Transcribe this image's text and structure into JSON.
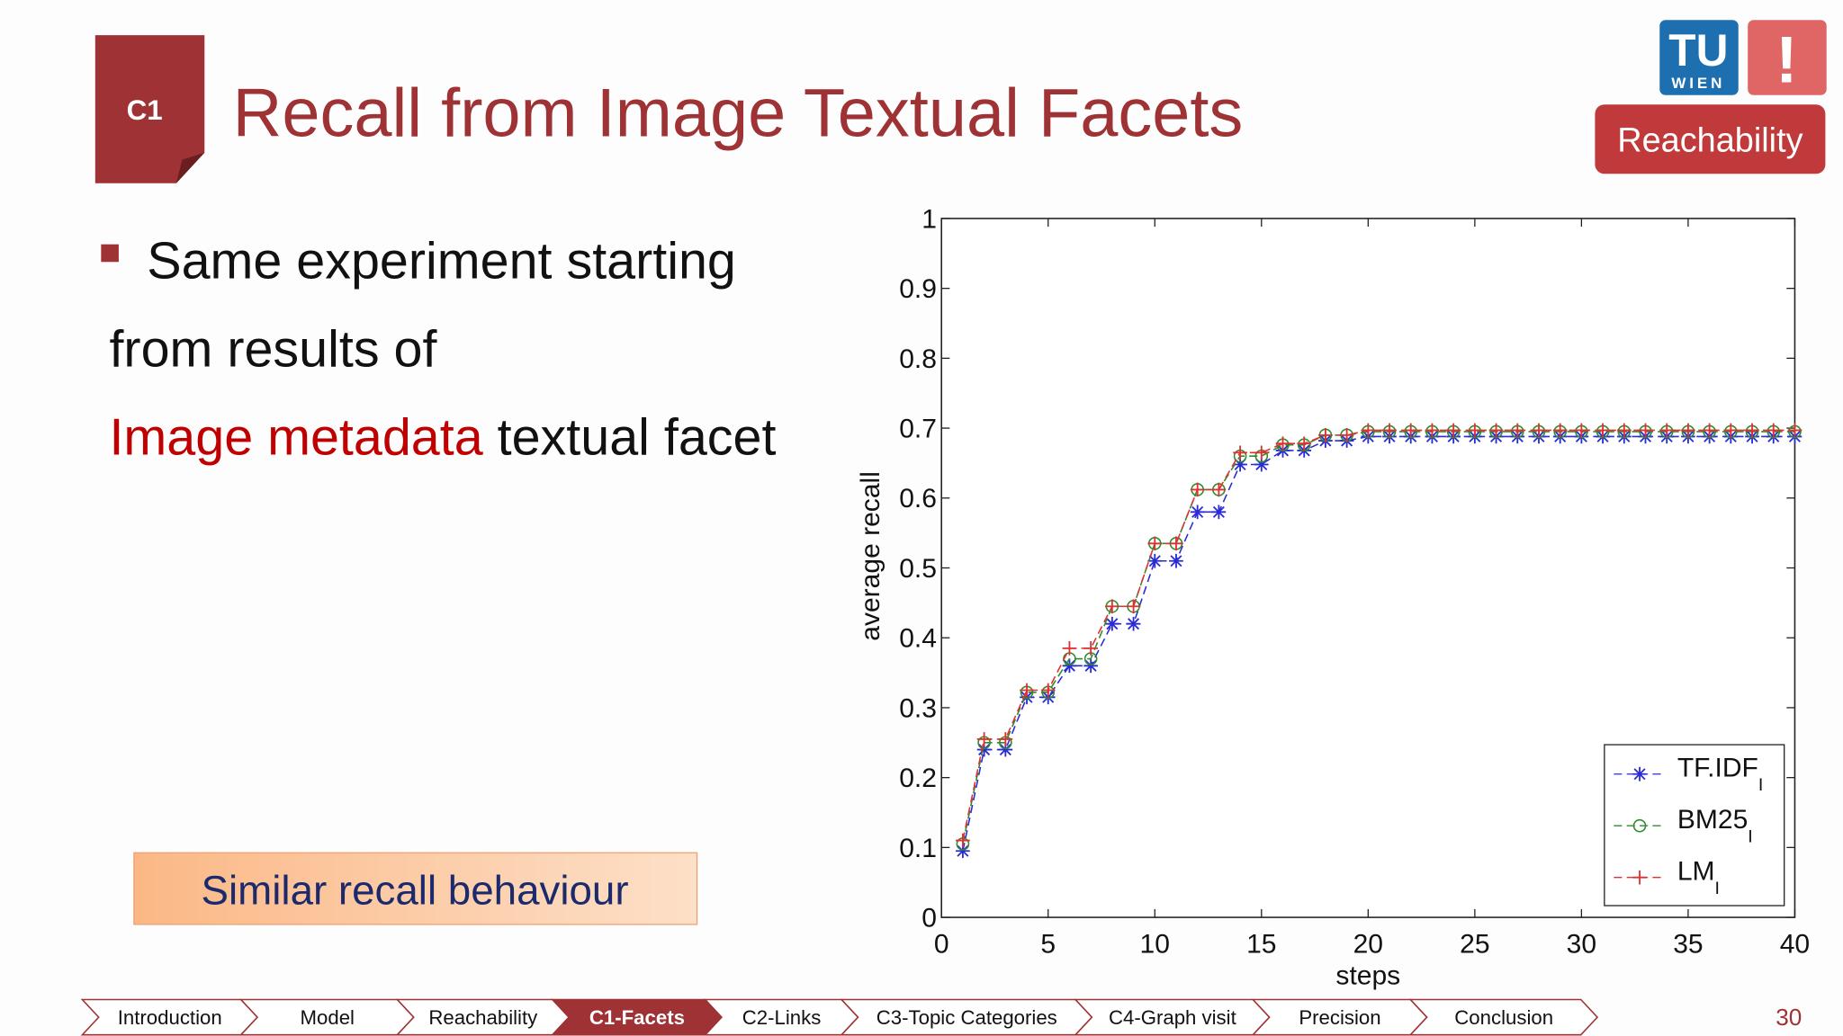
{
  "header": {
    "badge": "C1",
    "title": "Recall from Image Textual Facets",
    "logo_top": "TU",
    "logo_bottom": "WIEN",
    "logo_mark": "!",
    "section_button": "Reachability"
  },
  "bullet": {
    "line1": "Same experiment starting",
    "line2": "from results of",
    "highlight": "Image metadata",
    "rest": "textual facet"
  },
  "callout": "Similar recall behaviour",
  "nav": {
    "items": [
      "Introduction",
      "Model",
      "Reachability",
      "C1-Facets",
      "C2-Links",
      "C3-Topic Categories",
      "C4-Graph visit",
      "Precision",
      "Conclusion"
    ],
    "active": 3
  },
  "page_number": 30,
  "chart_data": {
    "type": "line",
    "x_label": "steps",
    "y_label": "average recall",
    "x": [
      1,
      2,
      3,
      4,
      5,
      6,
      7,
      8,
      9,
      10,
      11,
      12,
      13,
      14,
      15,
      16,
      17,
      18,
      19,
      20,
      21,
      22,
      23,
      24,
      25,
      26,
      27,
      28,
      29,
      30,
      31,
      32,
      33,
      34,
      35,
      36,
      37,
      38,
      39,
      40
    ],
    "series": [
      {
        "name": "TF.IDF",
        "subscript": "I",
        "color": "#2b2bd6",
        "marker": "star",
        "values": [
          0.095,
          0.24,
          0.24,
          0.315,
          0.315,
          0.36,
          0.36,
          0.42,
          0.42,
          0.51,
          0.51,
          0.58,
          0.58,
          0.648,
          0.648,
          0.668,
          0.668,
          0.682,
          0.682,
          0.688,
          0.688,
          0.688,
          0.688,
          0.688,
          0.688,
          0.688,
          0.688,
          0.688,
          0.688,
          0.688,
          0.688,
          0.688,
          0.688,
          0.688,
          0.688,
          0.688,
          0.688,
          0.688,
          0.688,
          0.688
        ]
      },
      {
        "name": "BM25",
        "subscript": "I",
        "color": "#2e8b2e",
        "marker": "circle",
        "values": [
          0.105,
          0.25,
          0.25,
          0.322,
          0.322,
          0.37,
          0.37,
          0.445,
          0.445,
          0.535,
          0.535,
          0.612,
          0.612,
          0.66,
          0.66,
          0.676,
          0.676,
          0.69,
          0.69,
          0.695,
          0.695,
          0.695,
          0.695,
          0.695,
          0.695,
          0.695,
          0.695,
          0.695,
          0.695,
          0.695,
          0.695,
          0.695,
          0.695,
          0.695,
          0.695,
          0.695,
          0.695,
          0.695,
          0.695,
          0.695
        ]
      },
      {
        "name": "LM",
        "subscript": "I",
        "color": "#e03030",
        "marker": "plus",
        "values": [
          0.11,
          0.255,
          0.255,
          0.325,
          0.325,
          0.385,
          0.385,
          0.445,
          0.445,
          0.535,
          0.535,
          0.612,
          0.612,
          0.665,
          0.665,
          0.678,
          0.678,
          0.69,
          0.69,
          0.697,
          0.697,
          0.697,
          0.697,
          0.697,
          0.697,
          0.697,
          0.697,
          0.697,
          0.697,
          0.697,
          0.697,
          0.697,
          0.697,
          0.697,
          0.697,
          0.697,
          0.697,
          0.697,
          0.697,
          0.697
        ]
      }
    ],
    "xlim": [
      0,
      40
    ],
    "xticks": [
      0,
      5,
      10,
      15,
      20,
      25,
      30,
      35,
      40
    ],
    "ylim": [
      0,
      1
    ],
    "yticks": [
      0,
      0.1,
      0.2,
      0.3,
      0.4,
      0.5,
      0.6,
      0.7,
      0.8,
      0.9,
      1
    ],
    "legend": "lower right",
    "grid": false
  }
}
